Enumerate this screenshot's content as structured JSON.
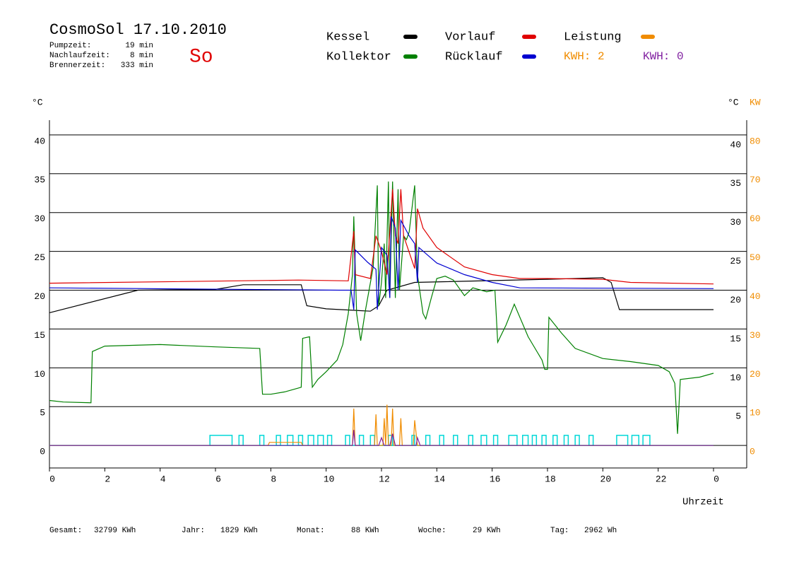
{
  "chart_data": {
    "type": "line",
    "title": "CosmoSol 17.10.2010",
    "day": "So",
    "times": [
      {
        "label": "Pumpzeit:",
        "value": "19 min"
      },
      {
        "label": "Nachlaufzeit:",
        "value": "8 min"
      },
      {
        "label": "Brennerzeit:",
        "value": "333 min"
      }
    ],
    "kwh_labels": [
      {
        "text": "KWH: 2",
        "color": "#f08c00"
      },
      {
        "text": "KWH: 0",
        "color": "#8020a0"
      }
    ],
    "y_label": "°C",
    "y2_label": "°C",
    "y2_unit": "KW",
    "x_label": "Uhrzeit",
    "xlim": [
      0,
      25.2
    ],
    "ylim": [
      -2.9,
      41.9
    ],
    "y2lim": [
      -5.8,
      83.8
    ],
    "xticks": [
      0,
      2,
      4,
      6,
      8,
      10,
      12,
      14,
      16,
      18,
      20,
      22,
      {
        "value": 24,
        "label": "0"
      }
    ],
    "yticks": [
      0,
      5,
      10,
      15,
      20,
      25,
      30,
      35,
      40
    ],
    "y_right_ticks": [
      5,
      10,
      15,
      20,
      25,
      30,
      35,
      40
    ],
    "y2ticks": [
      0,
      10,
      20,
      30,
      40,
      50,
      60,
      70,
      80
    ],
    "grid": true,
    "series": [
      {
        "name": "Kessel",
        "color": "#000000",
        "x": [
          0,
          3.2,
          6,
          7,
          9.1,
          9.3,
          10,
          11.6,
          11.9,
          12.2,
          13.2,
          18,
          20,
          20.3,
          20.6,
          24
        ],
        "values": [
          17.1,
          20,
          20.1,
          20.7,
          20.7,
          18,
          17.6,
          17.3,
          18,
          20,
          21,
          21.4,
          21.6,
          21,
          17.5,
          17.5
        ]
      },
      {
        "name": "Kollektor",
        "color": "#008000",
        "x": [
          0,
          0.5,
          1.5,
          1.55,
          2,
          4,
          6,
          7.6,
          7.7,
          8,
          8.5,
          9.1,
          9.15,
          9.4,
          9.5,
          9.7,
          10,
          10.4,
          10.6,
          10.8,
          10.95,
          11,
          11.1,
          11.25,
          11.4,
          11.7,
          11.85,
          11.9,
          12,
          12.1,
          12.15,
          12.25,
          12.3,
          12.4,
          12.5,
          12.6,
          12.65,
          12.8,
          12.9,
          13,
          13.2,
          13.3,
          13.5,
          13.6,
          13.8,
          14,
          14.3,
          14.6,
          15,
          15.3,
          15.8,
          16.1,
          16.2,
          16.5,
          16.8,
          17.3,
          17.8,
          17.9,
          18,
          18.05,
          18.5,
          19,
          20,
          21,
          22,
          22.4,
          22.6,
          22.7,
          22.8,
          23.5,
          24
        ],
        "values": [
          5.8,
          5.6,
          5.5,
          12.1,
          12.8,
          13,
          12.7,
          12.5,
          6.6,
          6.6,
          6.9,
          7.5,
          13.8,
          14,
          7.5,
          8.5,
          9.5,
          11,
          13,
          17,
          22,
          29.5,
          17,
          13.5,
          17,
          23,
          33.5,
          18,
          21,
          26,
          19,
          34,
          19,
          34,
          19,
          33,
          20,
          27,
          26.5,
          27.5,
          33.5,
          22,
          17,
          16.3,
          19,
          21.5,
          21.8,
          21.3,
          19.3,
          20.3,
          19.8,
          20,
          13.3,
          15.5,
          18.2,
          14,
          11,
          9.8,
          9.8,
          16.5,
          14.5,
          12.5,
          11.2,
          10.8,
          10.3,
          9.5,
          8,
          1.5,
          8.5,
          8.8,
          9.3
        ]
      },
      {
        "name": "Vorlauf",
        "color": "#e00000",
        "x": [
          0,
          9,
          10.8,
          11,
          11.05,
          11.6,
          11.8,
          12,
          12.2,
          12.4,
          12.5,
          12.6,
          12.7,
          12.8,
          13.2,
          13.3,
          13.5,
          14,
          15,
          16,
          17,
          18,
          20,
          21,
          24
        ],
        "values": [
          20.9,
          21.3,
          21.2,
          27.6,
          22,
          21.5,
          27,
          25,
          22,
          33,
          27,
          26,
          33,
          27,
          22.8,
          30.5,
          28,
          25.5,
          23,
          22,
          21.5,
          21.5,
          21.4,
          21,
          20.8
        ]
      },
      {
        "name": "Rücklauf",
        "color": "#0000d0",
        "x": [
          0,
          10.5,
          10.9,
          11,
          11.05,
          11.5,
          11.8,
          11.85,
          12,
          12.2,
          12.3,
          12.35,
          12.5,
          12.6,
          12.7,
          13,
          13.2,
          13.3,
          13.35,
          14,
          15,
          16,
          17,
          24
        ],
        "values": [
          20.3,
          20,
          20,
          17.5,
          25.2,
          23.6,
          22.7,
          17.5,
          25.5,
          24.5,
          19,
          29.5,
          28,
          20,
          29,
          27,
          26,
          21,
          25.5,
          23.5,
          22,
          21,
          20.3,
          20.2
        ]
      },
      {
        "name": "Leistung",
        "color": "#f08c00",
        "axis": "y2",
        "x": [
          0,
          7.9,
          7.95,
          9.1,
          9.15,
          10.95,
          11.0,
          11.05,
          11.75,
          11.8,
          11.85,
          12.05,
          12.1,
          12.15,
          12.2,
          12.25,
          12.35,
          12.4,
          12.45,
          12.65,
          12.7,
          12.75,
          13.15,
          13.2,
          13.3,
          24
        ],
        "values": [
          0,
          0,
          0.8,
          0.8,
          0,
          0,
          9.5,
          0,
          0,
          8,
          0,
          0,
          7,
          0,
          10.5,
          0,
          0,
          9.5,
          0,
          0,
          7,
          0,
          0,
          6.5,
          0,
          0
        ]
      },
      {
        "color": "#8020a0",
        "axis": "y2",
        "x": [
          0,
          10.95,
          11.0,
          11.05,
          11.9,
          12.0,
          12.1,
          12.3,
          12.4,
          12.5,
          13.25,
          13.3,
          13.4,
          24
        ],
        "values": [
          0,
          0,
          4,
          0,
          0,
          2,
          0,
          0,
          3,
          0,
          0,
          2,
          0,
          0
        ]
      }
    ],
    "pump": {
      "color": "#00d8d8",
      "height": 1.3,
      "intervals": [
        [
          5.8,
          6.6
        ],
        [
          6.85,
          7.0
        ],
        [
          7.6,
          7.75
        ],
        [
          8.2,
          8.35
        ],
        [
          8.6,
          8.8
        ],
        [
          9.0,
          9.15
        ],
        [
          9.35,
          9.55
        ],
        [
          9.7,
          9.9
        ],
        [
          10.05,
          10.2
        ],
        [
          10.7,
          10.85
        ],
        [
          11.2,
          11.35
        ],
        [
          11.6,
          11.75
        ],
        [
          12.25,
          12.4
        ],
        [
          13.1,
          13.2
        ],
        [
          13.6,
          13.75
        ],
        [
          14.1,
          14.25
        ],
        [
          14.6,
          14.75
        ],
        [
          15.15,
          15.3
        ],
        [
          15.6,
          15.8
        ],
        [
          16.05,
          16.2
        ],
        [
          16.6,
          16.9
        ],
        [
          17.1,
          17.3
        ],
        [
          17.45,
          17.6
        ],
        [
          17.8,
          17.95
        ],
        [
          18.2,
          18.35
        ],
        [
          18.6,
          18.75
        ],
        [
          19.0,
          19.15
        ],
        [
          19.5,
          19.65
        ],
        [
          20.5,
          20.9
        ],
        [
          21.05,
          21.3
        ],
        [
          21.45,
          21.7
        ]
      ]
    },
    "totals": [
      {
        "label": "Gesamt:",
        "value": "32799 KWh"
      },
      {
        "label": "Jahr:",
        "value": "1829 KWh"
      },
      {
        "label": "Monat:",
        "value": "88 KWh"
      },
      {
        "label": "Woche:",
        "value": "29 KWh"
      },
      {
        "label": "Tag:",
        "value": "2962 Wh"
      }
    ]
  }
}
